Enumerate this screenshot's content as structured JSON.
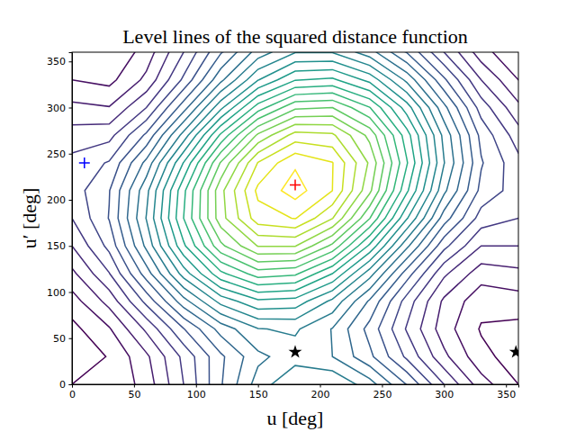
{
  "chart_data": {
    "type": "contour",
    "title": "Level lines of the squared distance function",
    "x_label": "u [deg]",
    "y_label": "u′ [deg]",
    "xlim": [
      0,
      360
    ],
    "ylim": [
      0,
      360
    ],
    "xticks": [
      0,
      50,
      100,
      150,
      200,
      250,
      300,
      350
    ],
    "yticks": [
      0,
      50,
      100,
      150,
      200,
      250,
      300,
      350
    ],
    "grid": false,
    "u": [
      0,
      30,
      60,
      90,
      120,
      150,
      180,
      210,
      240,
      270,
      300,
      330,
      360
    ],
    "v": [
      0,
      30,
      60,
      90,
      120,
      150,
      180,
      210,
      240,
      270,
      300,
      330,
      360
    ],
    "z": [
      [
        0.6,
        0.6,
        0.89,
        1.4,
        1.98,
        2.49,
        2.79,
        2.79,
        2.49,
        1.99,
        1.4,
        0.89,
        0.6
      ],
      [
        0.5,
        0.61,
        0.96,
        1.45,
        1.96,
        2.35,
        2.51,
        2.4,
        2.05,
        1.56,
        1.05,
        0.66,
        0.5
      ],
      [
        0.54,
        0.78,
        1.24,
        1.79,
        2.28,
        2.59,
        2.63,
        2.39,
        1.93,
        1.38,
        0.89,
        0.58,
        0.54
      ],
      [
        0.71,
        1.07,
        1.66,
        2.32,
        2.87,
        3.16,
        3.12,
        2.75,
        2.17,
        1.51,
        0.96,
        0.67,
        0.71
      ],
      [
        0.95,
        1.39,
        2.1,
        2.89,
        3.55,
        3.9,
        3.84,
        3.4,
        2.69,
        1.9,
        1.24,
        0.89,
        0.95
      ],
      [
        1.2,
        1.66,
        2.45,
        3.36,
        4.15,
        4.61,
        4.61,
        4.15,
        3.36,
        2.45,
        1.66,
        1.2,
        1.2
      ],
      [
        1.4,
        1.81,
        2.61,
        3.6,
        4.52,
        5.11,
        5.21,
        4.81,
        4.01,
        3.02,
        2.1,
        1.51,
        1.4
      ],
      [
        1.5,
        1.79,
        2.54,
        3.55,
        4.54,
        5.25,
        5.49,
        5.2,
        4.45,
        3.44,
        2.45,
        1.74,
        1.5
      ],
      [
        1.46,
        1.62,
        2.26,
        3.21,
        4.22,
        5.01,
        5.37,
        5.21,
        4.57,
        3.62,
        2.61,
        1.82,
        1.46
      ],
      [
        1.29,
        1.33,
        1.84,
        2.68,
        3.64,
        4.44,
        4.88,
        4.84,
        4.34,
        3.49,
        2.54,
        1.74,
        1.29
      ],
      [
        1.05,
        1.01,
        1.4,
        2.11,
        2.95,
        3.7,
        4.16,
        4.2,
        3.81,
        3.1,
        2.26,
        1.51,
        1.05
      ],
      [
        0.8,
        0.74,
        1.05,
        1.64,
        2.35,
        2.99,
        3.39,
        3.44,
        3.14,
        2.55,
        1.84,
        1.2,
        0.8
      ],
      [
        0.6,
        0.6,
        0.89,
        1.4,
        1.98,
        2.49,
        2.79,
        2.79,
        2.49,
        1.99,
        1.4,
        0.89,
        0.6
      ]
    ],
    "levels": [
      0.6,
      0.8,
      1.0,
      1.2,
      1.4,
      1.6,
      1.8,
      2.0,
      2.2,
      2.4,
      2.6,
      2.8,
      3.0,
      3.2,
      3.4,
      3.6,
      3.8,
      4.0,
      4.2,
      4.4,
      4.6,
      4.8,
      5.0,
      5.2,
      5.4
    ],
    "series": [
      {
        "type": "scatter",
        "marker": "plus",
        "color": "#ff0000",
        "x": [
          180
        ],
        "y": [
          216
        ]
      },
      {
        "type": "scatter",
        "marker": "plus",
        "color": "#0000ff",
        "x": [
          10
        ],
        "y": [
          240
        ]
      },
      {
        "type": "scatter",
        "marker": "star",
        "color": "#000000",
        "x": [
          180,
          358
        ],
        "y": [
          35,
          35
        ]
      }
    ]
  }
}
